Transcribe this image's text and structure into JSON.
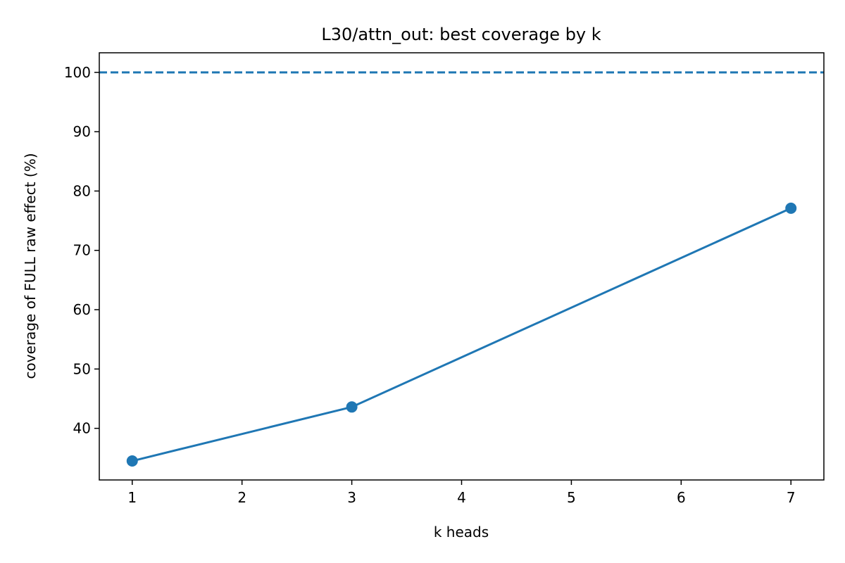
{
  "chart_data": {
    "type": "line",
    "title": "L30/attn_out: best coverage by k",
    "xlabel": "k heads",
    "ylabel": "coverage of FULL raw effect (%)",
    "x": [
      1,
      3,
      7
    ],
    "series": [
      {
        "values": [
          34.5,
          43.6,
          77.1
        ],
        "color": "#1f77b4",
        "marker": "circle"
      }
    ],
    "reference_line": {
      "y": 100,
      "style": "dashed",
      "color": "#1f77b4"
    },
    "xlim": [
      0.7,
      7.3
    ],
    "ylim": [
      31.3,
      103.3
    ],
    "xticks": [
      1,
      2,
      3,
      4,
      5,
      6,
      7
    ],
    "yticks": [
      40,
      50,
      60,
      70,
      80,
      90,
      100
    ],
    "grid": false,
    "legend": "none"
  }
}
